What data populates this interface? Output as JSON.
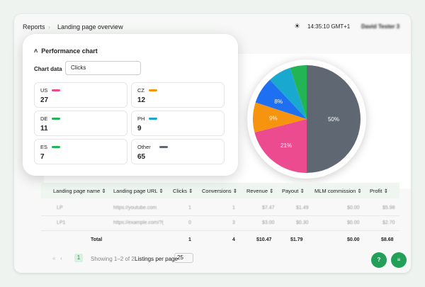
{
  "header": {
    "breadcrumb": [
      "Reports",
      "Landing page overview"
    ],
    "time": "14:35:10 GMT+1",
    "user": "David Tester 3"
  },
  "performance_chart": {
    "title": "Performance chart",
    "chart_data_label": "Chart data",
    "chart_data_value": "Clicks",
    "cards": [
      {
        "name": "US",
        "color": "#ec4c8f",
        "value": 27
      },
      {
        "name": "CZ",
        "color": "#f7940f",
        "value": 12
      },
      {
        "name": "DE",
        "color": "#22b455",
        "value": 11
      },
      {
        "name": "PH",
        "color": "#18a8d0",
        "value": 9
      },
      {
        "name": "ES",
        "color": "#22b455",
        "value": 7
      },
      {
        "name": "Other",
        "color": "#5f6773",
        "value": 65
      }
    ]
  },
  "chart_data": {
    "type": "pie",
    "values": [
      50,
      21,
      9,
      8,
      7,
      5
    ],
    "value_labels": [
      "50%",
      "21%",
      "9%",
      "8%",
      null,
      null
    ],
    "colors": [
      "#5f6773",
      "#ec4c8f",
      "#f7940f",
      "#1e6ff2",
      "#18a8d0",
      "#22b455"
    ]
  },
  "table": {
    "headers": [
      "Landing page name",
      "Landing page URL",
      "Clicks",
      "Conversions",
      "Revenue",
      "Payout",
      "MLM commission",
      "Profit"
    ],
    "rows": [
      [
        "LP",
        "https://youtube.com",
        "1",
        "1",
        "$7.47",
        "$1.49",
        "$0.00",
        "$5.98"
      ],
      [
        "LP1",
        "https://example.com/?(",
        "0",
        "3",
        "$3.00",
        "$0.30",
        "$0.00",
        "$2.70"
      ]
    ],
    "total": [
      "Total",
      "1",
      "4",
      "$10.47",
      "$1.79",
      "$0.00",
      "$8.68"
    ]
  },
  "pagination": {
    "page": "1",
    "showing": "Showing 1–2 of 2",
    "per_page_label": "Listings per page",
    "per_page": "25"
  }
}
